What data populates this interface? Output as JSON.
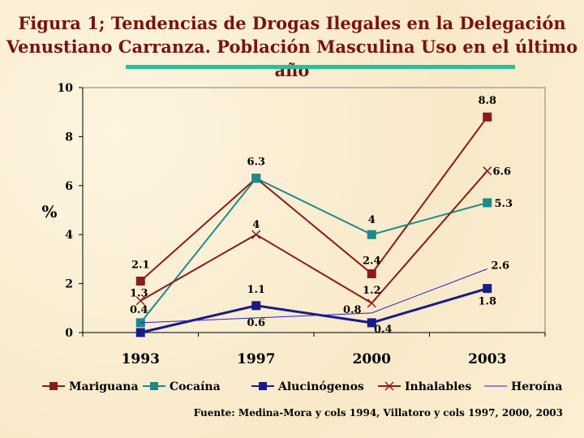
{
  "title_line1": "Figura 1; Tendencias de Drogas Ilegales en  la Delegación",
  "title_line2": "Venustiano Carranza. Población Masculina Uso en el último año",
  "source": "Fuente: Medina-Mora y cols 1994, Villatoro y cols 1997, 2000, 2003",
  "chart_data": {
    "type": "line",
    "categories": [
      "1993",
      "1997",
      "2000",
      "2003"
    ],
    "ylabel": "%",
    "ylim": [
      0,
      10
    ],
    "yticks": [
      "0",
      "2",
      "4",
      "6",
      "8",
      "10"
    ],
    "grid": false,
    "legend_position": "bottom",
    "series": [
      {
        "name": "Mariguana",
        "values": [
          2.1,
          6.3,
          2.4,
          8.8
        ],
        "labels": [
          "2.1",
          "6.3",
          "2.4",
          "8.8"
        ],
        "color": "#8b1a1a",
        "marker": "square"
      },
      {
        "name": "Cocaína",
        "values": [
          0.4,
          6.3,
          4.0,
          5.3
        ],
        "labels": [
          "0.4",
          "",
          "4",
          "5.3"
        ],
        "color": "#1e8a8a",
        "marker": "square"
      },
      {
        "name": "Alucinógenos",
        "values": [
          0.0,
          1.1,
          0.4,
          1.8
        ],
        "labels": [
          "",
          "1.1",
          "0.4",
          "1.8"
        ],
        "color": "#1a1a8b",
        "marker": "square"
      },
      {
        "name": "Inhalables",
        "values": [
          1.3,
          4.0,
          1.2,
          6.6
        ],
        "labels": [
          "1.3",
          "4",
          "1.2",
          "6.6"
        ],
        "color": "#8b1a1a",
        "marker": "x"
      },
      {
        "name": "Heroína",
        "values": [
          0.4,
          0.6,
          0.8,
          2.6
        ],
        "labels": [
          "",
          "0.6",
          "0.8",
          "2.6"
        ],
        "color": "#2020d0",
        "marker": "none"
      }
    ]
  }
}
